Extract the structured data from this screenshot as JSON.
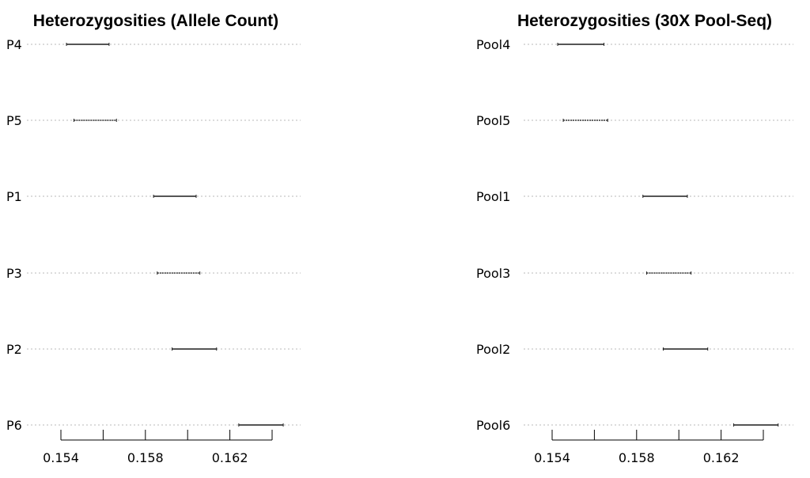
{
  "chart_data": [
    {
      "type": "interval",
      "title": "Heterozygosities (Allele Count)",
      "xlabel": "",
      "ylabel": "",
      "xlim": [
        0.1527,
        0.1641
      ],
      "xticks": [
        0.154,
        0.156,
        0.158,
        0.16,
        0.162,
        0.164
      ],
      "xtick_labels": [
        "0.154",
        "",
        "0.158",
        "",
        "0.162",
        ""
      ],
      "grid": "dotted horizontal guide lines",
      "categories": [
        "P4",
        "P5",
        "P1",
        "P3",
        "P2",
        "P6"
      ],
      "intervals": [
        {
          "label": "P4",
          "low": 0.153,
          "high": 0.1553,
          "style": "solid"
        },
        {
          "label": "P5",
          "low": 0.1534,
          "high": 0.1557,
          "style": "dashed"
        },
        {
          "label": "P1",
          "low": 0.1577,
          "high": 0.16,
          "style": "solid"
        },
        {
          "label": "P3",
          "low": 0.1579,
          "high": 0.1602,
          "style": "dashed"
        },
        {
          "label": "P2",
          "low": 0.1587,
          "high": 0.1611,
          "style": "solid"
        },
        {
          "label": "P6",
          "low": 0.1623,
          "high": 0.1647,
          "style": "solid"
        }
      ]
    },
    {
      "type": "interval",
      "title": "Heterozygosities (30X Pool-Seq)",
      "xlabel": "",
      "ylabel": "",
      "xlim": [
        0.1527,
        0.1641
      ],
      "xticks": [
        0.154,
        0.156,
        0.158,
        0.16,
        0.162,
        0.164
      ],
      "xtick_labels": [
        "0.154",
        "",
        "0.158",
        "",
        "0.162",
        ""
      ],
      "grid": "dotted horizontal guide lines",
      "categories": [
        "Pool4",
        "Pool5",
        "Pool1",
        "Pool3",
        "Pool2",
        "Pool6"
      ],
      "intervals": [
        {
          "label": "Pool4",
          "low": 0.153,
          "high": 0.1555,
          "style": "solid"
        },
        {
          "label": "Pool5",
          "low": 0.1533,
          "high": 0.1557,
          "style": "dashed"
        },
        {
          "label": "Pool1",
          "low": 0.1576,
          "high": 0.16,
          "style": "solid"
        },
        {
          "label": "Pool3",
          "low": 0.1578,
          "high": 0.1602,
          "style": "dashed"
        },
        {
          "label": "Pool2",
          "low": 0.1587,
          "high": 0.1611,
          "style": "solid"
        },
        {
          "label": "Pool6",
          "low": 0.1625,
          "high": 0.1649,
          "style": "solid"
        }
      ]
    }
  ]
}
